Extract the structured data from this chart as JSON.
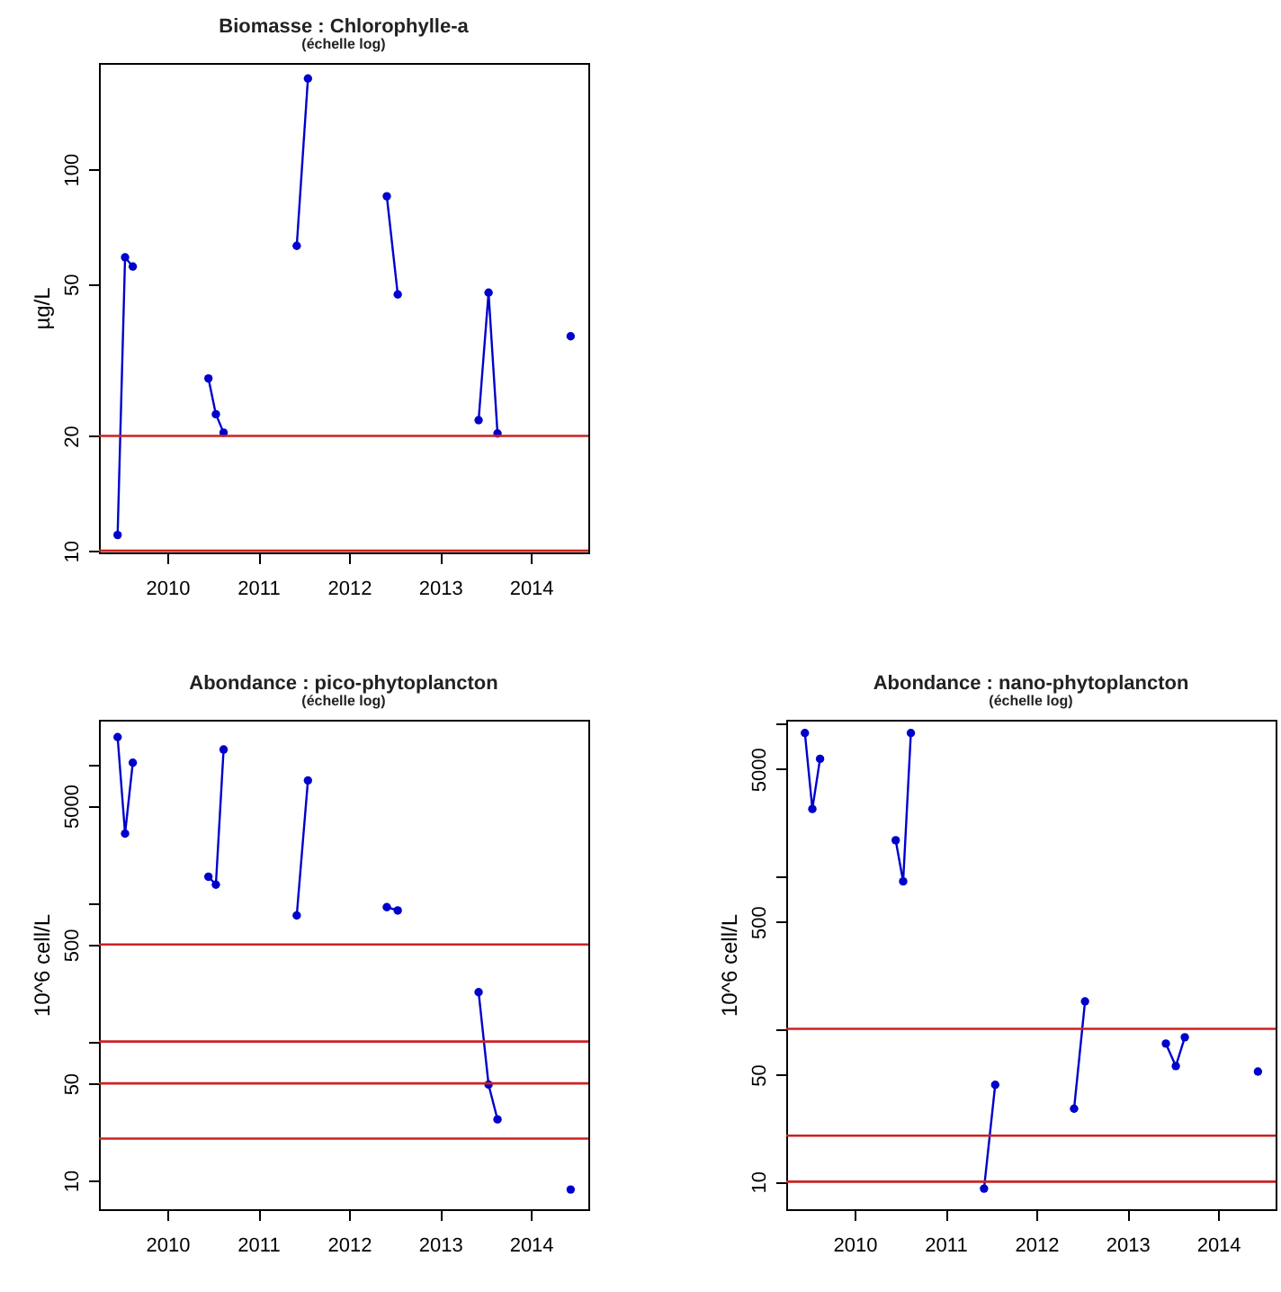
{
  "chart_data": [
    {
      "type": "line",
      "title": "Biomasse : Chlorophylle-a",
      "subtitle": "(échelle log)",
      "ylabel": "µg/L",
      "log": "y",
      "marker": "circle",
      "xlim": [
        "2009-04-01",
        "2014-08-20"
      ],
      "xticks": [
        "2010",
        "2011",
        "2012",
        "2013",
        "2014"
      ],
      "ylim": [
        9.9,
        190
      ],
      "yticks": [
        10,
        20,
        50,
        100
      ],
      "ref_lines": [
        {
          "axis": "y",
          "value": 20,
          "color": "#cc2222"
        },
        {
          "axis": "y",
          "value": 10,
          "color": "#cc2222"
        }
      ],
      "series": [
        {
          "color": "#0000cc",
          "x": [
            "2009-06-15",
            "2009-07-15",
            "2009-08-15"
          ],
          "values": [
            11.0,
            58.8,
            55.6
          ]
        },
        {
          "color": "#0000cc",
          "x": [
            "2010-06-15",
            "2010-07-15",
            "2010-08-15"
          ],
          "values": [
            28.3,
            22.8,
            20.4
          ]
        },
        {
          "color": "#0000cc",
          "x": [
            "2011-06-05",
            "2011-07-20"
          ],
          "values": [
            63,
            173
          ]
        },
        {
          "color": "#0000cc",
          "x": [
            "2012-06-01",
            "2012-07-15"
          ],
          "values": [
            85,
            47
          ]
        },
        {
          "color": "#0000cc",
          "x": [
            "2013-06-05",
            "2013-07-15",
            "2013-08-20"
          ],
          "values": [
            22.0,
            47.5,
            20.3
          ]
        },
        {
          "color": "#0000cc",
          "x": [
            "2014-06-10"
          ],
          "values": [
            36.5
          ]
        }
      ]
    },
    {
      "type": "line",
      "title": "Abondance : pico-phytoplancton",
      "subtitle": "(échelle log)",
      "ylabel": "10^6 cell/L",
      "log": "y",
      "marker": "circle",
      "xlim": [
        "2009-04-01",
        "2014-08-20"
      ],
      "xticks": [
        "2010",
        "2011",
        "2012",
        "2013",
        "2014"
      ],
      "ylim": [
        6.2,
        20800
      ],
      "yticks": [
        10,
        50,
        {
          "value": 100,
          "label": null
        },
        500,
        {
          "value": 1000,
          "label": null
        },
        5000,
        {
          "value": 10000,
          "label": null
        }
      ],
      "ref_lines": [
        {
          "axis": "y",
          "value": 500,
          "color": "#cc2222"
        },
        {
          "axis": "y",
          "value": 100,
          "color": "#cc2222"
        },
        {
          "axis": "y",
          "value": 50,
          "color": "#cc2222"
        },
        {
          "axis": "y",
          "value": 20,
          "color": "#cc2222"
        }
      ],
      "series": [
        {
          "color": "#0000cc",
          "x": [
            "2009-06-15",
            "2009-07-15",
            "2009-08-15"
          ],
          "values": [
            15600,
            3150,
            10200
          ]
        },
        {
          "color": "#0000cc",
          "x": [
            "2010-06-15",
            "2010-07-15",
            "2010-08-15"
          ],
          "values": [
            1540,
            1350,
            12700
          ]
        },
        {
          "color": "#0000cc",
          "x": [
            "2011-06-05",
            "2011-07-20"
          ],
          "values": [
            810,
            7600
          ]
        },
        {
          "color": "#0000cc",
          "x": [
            "2012-06-01",
            "2012-07-15"
          ],
          "values": [
            930,
            880
          ]
        },
        {
          "color": "#0000cc",
          "x": [
            "2013-06-05",
            "2013-07-15",
            "2013-08-20"
          ],
          "values": [
            227,
            49,
            27.5
          ]
        },
        {
          "color": "#0000cc",
          "x": [
            "2014-06-10"
          ],
          "values": [
            8.6
          ]
        }
      ]
    },
    {
      "type": "line",
      "title": "Abondance : nano-phytoplancton",
      "subtitle": "(échelle log)",
      "ylabel": "10^6 cell/L",
      "log": "y",
      "marker": "circle",
      "xlim": [
        "2009-04-01",
        "2014-08-20"
      ],
      "xticks": [
        "2010",
        "2011",
        "2012",
        "2013",
        "2014"
      ],
      "ylim": [
        6.6,
        10500
      ],
      "yticks": [
        10,
        50,
        {
          "value": 100,
          "label": null
        },
        500,
        {
          "value": 1000,
          "label": null
        },
        5000,
        {
          "value": 10000,
          "label": null
        }
      ],
      "ref_lines": [
        {
          "axis": "y",
          "value": 100,
          "color": "#cc2222"
        },
        {
          "axis": "y",
          "value": 20,
          "color": "#cc2222"
        },
        {
          "axis": "y",
          "value": 10,
          "color": "#cc2222"
        }
      ],
      "series": [
        {
          "color": "#0000cc",
          "x": [
            "2009-06-15",
            "2009-07-15",
            "2009-08-15"
          ],
          "values": [
            8600,
            2740,
            5830
          ]
        },
        {
          "color": "#0000cc",
          "x": [
            "2010-06-15",
            "2010-07-15",
            "2010-08-15"
          ],
          "values": [
            1710,
            920,
            8600
          ]
        },
        {
          "color": "#0000cc",
          "x": [
            "2011-06-05",
            "2011-07-20"
          ],
          "values": [
            9.0,
            43
          ]
        },
        {
          "color": "#0000cc",
          "x": [
            "2012-06-01",
            "2012-07-15"
          ],
          "values": [
            30,
            151
          ]
        },
        {
          "color": "#0000cc",
          "x": [
            "2013-06-05",
            "2013-07-15",
            "2013-08-20"
          ],
          "values": [
            80,
            57,
            88
          ]
        },
        {
          "color": "#0000cc",
          "x": [
            "2014-06-10"
          ],
          "values": [
            52.5
          ]
        }
      ]
    }
  ]
}
